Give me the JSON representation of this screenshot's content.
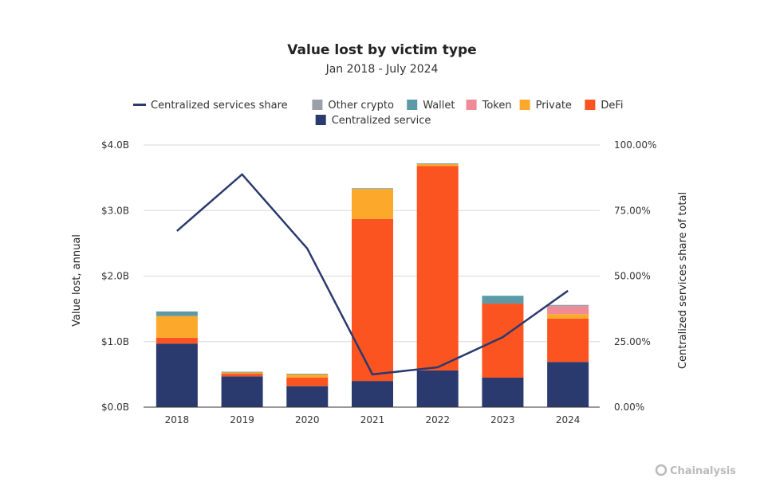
{
  "chart_data": {
    "type": "bar",
    "stacked": true,
    "title": "Value lost by victim type",
    "subtitle": "Jan 2018 - July 2024",
    "ylabel": "Value lost, annual",
    "y2label": "Centralized services share of total",
    "ylim": [
      0,
      4.0
    ],
    "y2lim": [
      0,
      100
    ],
    "yticks": [
      "$0.0B",
      "$1.0B",
      "$2.0B",
      "$3.0B",
      "$4.0B"
    ],
    "y2ticks": [
      "0.00%",
      "25.00%",
      "50.00%",
      "75.00%",
      "100.00%"
    ],
    "grid": true,
    "legend_placement": "top",
    "categories": [
      "2018",
      "2019",
      "2020",
      "2021",
      "2022",
      "2023",
      "2024"
    ],
    "series": [
      {
        "name": "Centralized service",
        "color": "#2b3a6e",
        "values": [
          0.97,
          0.47,
          0.32,
          0.4,
          0.56,
          0.45,
          0.69
        ]
      },
      {
        "name": "DeFi",
        "color": "#fc5420",
        "values": [
          0.09,
          0.04,
          0.13,
          2.47,
          3.12,
          1.13,
          0.66
        ]
      },
      {
        "name": "Private",
        "color": "#fba82b",
        "values": [
          0.33,
          0.02,
          0.05,
          0.46,
          0.03,
          0.0,
          0.07
        ]
      },
      {
        "name": "Token",
        "color": "#f08a96",
        "values": [
          0.0,
          0.0,
          0.0,
          0.0,
          0.0,
          0.0,
          0.12
        ]
      },
      {
        "name": "Wallet",
        "color": "#5d9aa8",
        "values": [
          0.07,
          0.01,
          0.01,
          0.01,
          0.01,
          0.12,
          0.0
        ]
      },
      {
        "name": "Other crypto",
        "color": "#9a9fa8",
        "values": [
          0.0,
          0.0,
          0.0,
          0.0,
          0.0,
          0.0,
          0.02
        ]
      }
    ],
    "line_series": {
      "name": "Centralized services share",
      "color": "#2b3a6e",
      "axis": "right",
      "unit": "%",
      "values": [
        67.2,
        88.8,
        60.5,
        12.5,
        15.2,
        26.7,
        44.4
      ]
    },
    "legend_order": [
      "Centralized services share",
      "Other crypto",
      "Wallet",
      "Token",
      "Private",
      "DeFi",
      "Centralized service"
    ]
  },
  "watermark": "Chainalysis"
}
